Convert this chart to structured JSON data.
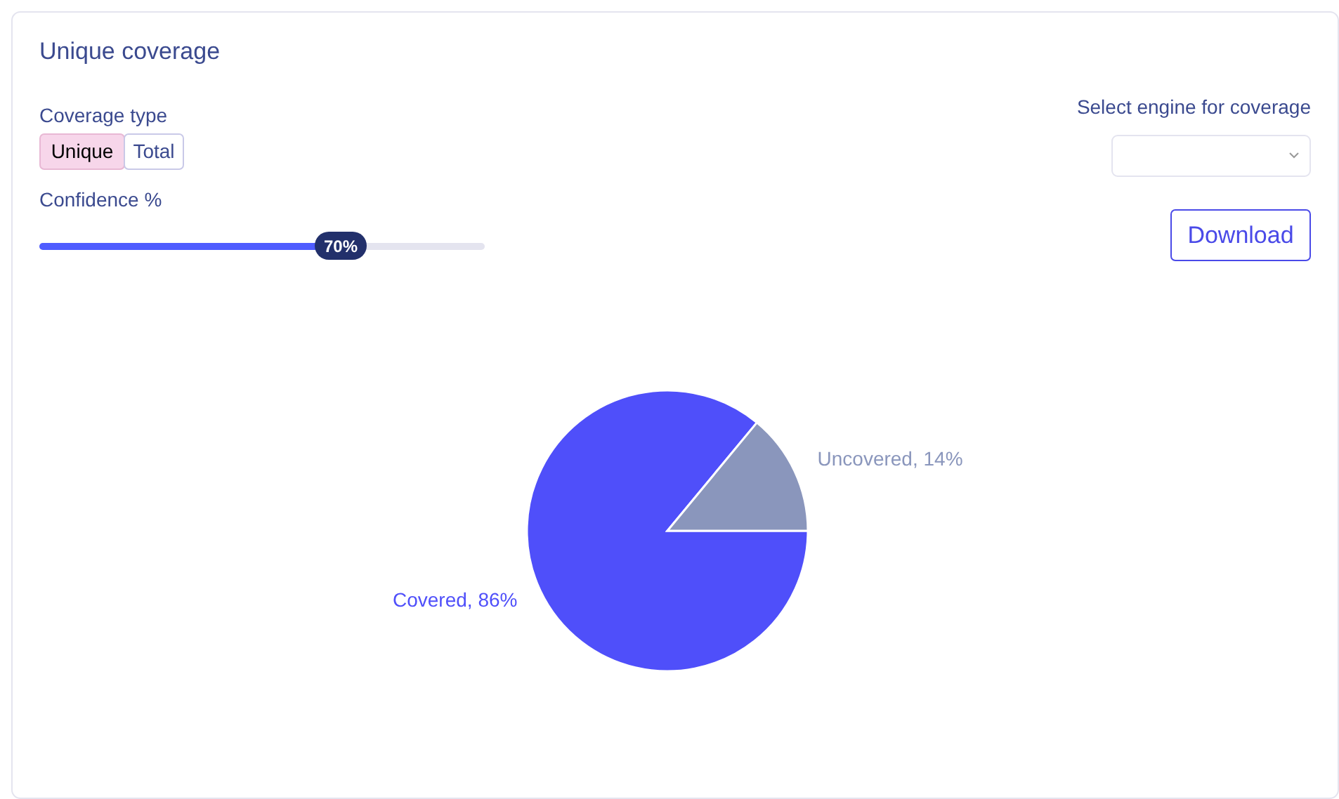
{
  "chart_data": {
    "type": "pie",
    "title": "Unique coverage",
    "categories": [
      "Covered",
      "Uncovered"
    ],
    "values": [
      86,
      14
    ],
    "colors": [
      "#4f4ffa",
      "#8a96bc"
    ],
    "value_labels": [
      "86%",
      "14%"
    ],
    "annotations": [
      "Coverage type",
      "Unique",
      "Total",
      "Confidence %",
      "70%",
      "Select engine for coverage",
      "Download"
    ]
  }
}
